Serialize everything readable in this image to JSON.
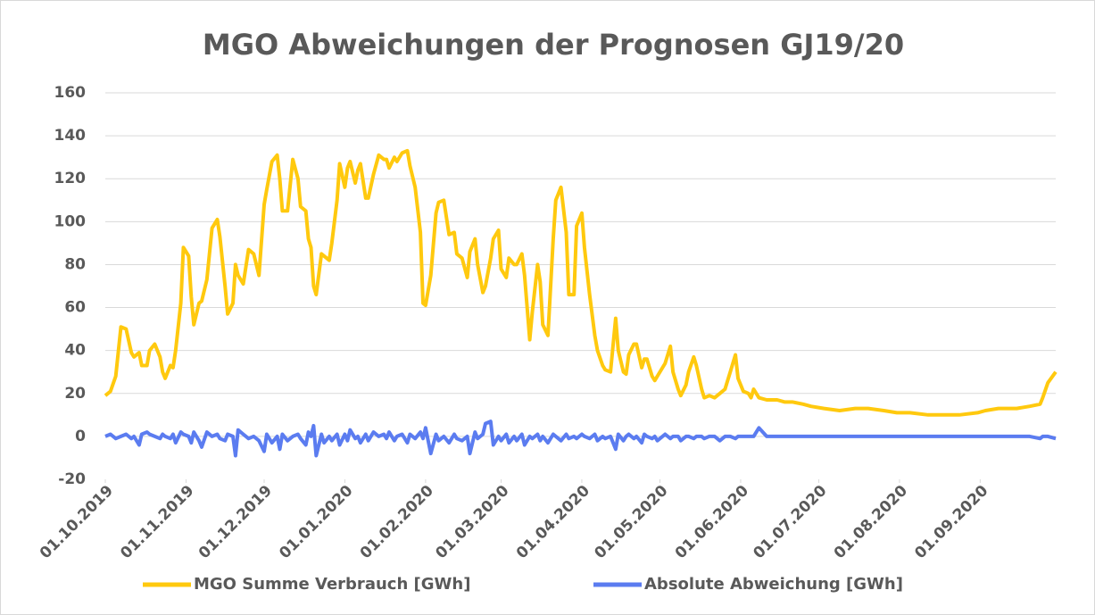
{
  "chart_data": {
    "type": "line",
    "title": "MGO Abweichungen der Prognosen GJ19/20",
    "x": [
      "01.10.2019",
      "03.10.2019",
      "05.10.2019",
      "07.10.2019",
      "09.10.2019",
      "11.10.2019",
      "12.10.2019",
      "14.10.2019",
      "15.10.2019",
      "17.10.2019",
      "18.10.2019",
      "20.10.2019",
      "22.10.2019",
      "23.10.2019",
      "24.10.2019",
      "26.10.2019",
      "27.10.2019",
      "28.10.2019",
      "30.10.2019",
      "31.10.2019",
      "02.11.2019",
      "03.11.2019",
      "04.11.2019",
      "06.11.2019",
      "07.11.2019",
      "09.11.2019",
      "11.11.2019",
      "13.11.2019",
      "14.11.2019",
      "16.11.2019",
      "17.11.2019",
      "19.11.2019",
      "20.11.2019",
      "21.11.2019",
      "23.11.2019",
      "25.11.2019",
      "27.11.2019",
      "29.11.2019",
      "01.12.2019",
      "02.12.2019",
      "04.12.2019",
      "06.12.2019",
      "07.12.2019",
      "08.12.2019",
      "10.12.2019",
      "12.12.2019",
      "14.12.2019",
      "15.12.2019",
      "17.12.2019",
      "18.12.2019",
      "19.12.2019",
      "20.12.2019",
      "21.12.2019",
      "23.12.2019",
      "24.12.2019",
      "26.12.2019",
      "27.12.2019",
      "29.12.2019",
      "30.12.2019",
      "01.01.2020",
      "02.01.2020",
      "03.01.2020",
      "05.01.2020",
      "06.01.2020",
      "07.01.2020",
      "09.01.2020",
      "10.01.2020",
      "12.01.2020",
      "14.01.2020",
      "16.01.2020",
      "17.01.2020",
      "18.01.2020",
      "20.01.2020",
      "21.01.2020",
      "23.01.2020",
      "25.01.2020",
      "26.01.2020",
      "28.01.2020",
      "30.01.2020",
      "31.01.2020",
      "01.02.2020",
      "03.02.2020",
      "05.02.2020",
      "06.02.2020",
      "08.02.2020",
      "10.02.2020",
      "12.02.2020",
      "13.02.2020",
      "15.02.2020",
      "17.02.2020",
      "18.02.2020",
      "20.02.2020",
      "21.02.2020",
      "23.02.2020",
      "24.02.2020",
      "26.02.2020",
      "27.02.2020",
      "29.02.2020",
      "01.03.2020",
      "03.03.2020",
      "04.03.2020",
      "06.03.2020",
      "07.03.2020",
      "09.03.2020",
      "10.03.2020",
      "12.03.2020",
      "13.03.2020",
      "15.03.2020",
      "16.03.2020",
      "17.03.2020",
      "19.03.2020",
      "21.03.2020",
      "22.03.2020",
      "24.03.2020",
      "26.03.2020",
      "27.03.2020",
      "29.03.2020",
      "30.03.2020",
      "01.04.2020",
      "02.04.2020",
      "04.04.2020",
      "06.04.2020",
      "07.04.2020",
      "09.04.2020",
      "10.04.2020",
      "12.04.2020",
      "14.04.2020",
      "15.04.2020",
      "17.04.2020",
      "18.04.2020",
      "19.04.2020",
      "21.04.2020",
      "22.04.2020",
      "24.04.2020",
      "25.04.2020",
      "26.04.2020",
      "28.04.2020",
      "29.04.2020",
      "30.04.2020",
      "02.05.2020",
      "03.05.2020",
      "05.05.2020",
      "06.05.2020",
      "08.05.2020",
      "09.05.2020",
      "11.05.2020",
      "12.05.2020",
      "14.05.2020",
      "15.05.2020",
      "17.05.2020",
      "18.05.2020",
      "20.05.2020",
      "22.05.2020",
      "24.05.2020",
      "26.05.2020",
      "28.05.2020",
      "30.05.2020",
      "31.05.2020",
      "02.06.2020",
      "04.06.2020",
      "05.06.2020",
      "06.06.2020",
      "08.06.2020",
      "11.06.2020",
      "15.06.2020",
      "18.06.2020",
      "21.06.2020",
      "25.06.2020",
      "28.06.2020",
      "03.07.2020",
      "09.07.2020",
      "15.07.2020",
      "20.07.2020",
      "26.07.2020",
      "31.07.2020",
      "05.08.2020",
      "12.08.2020",
      "19.08.2020",
      "24.08.2020",
      "31.08.2020",
      "03.09.2020",
      "08.09.2020",
      "15.09.2020",
      "20.09.2020",
      "24.09.2020",
      "25.09.2020",
      "27.09.2020",
      "30.09.2020"
    ],
    "series": [
      {
        "name": "MGO Summe Verbrauch [GWh]",
        "color": "#ffc90e",
        "values": [
          19,
          21,
          28,
          51,
          50,
          39,
          37,
          39,
          33,
          33,
          40,
          43,
          37,
          30,
          27,
          33,
          32,
          40,
          62,
          88,
          84,
          65,
          52,
          62,
          63,
          73,
          97,
          101,
          93,
          70,
          57,
          62,
          80,
          75,
          71,
          87,
          85,
          75,
          108,
          115,
          128,
          131,
          120,
          105,
          105,
          129,
          120,
          107,
          105,
          92,
          88,
          70,
          66,
          85,
          84,
          82,
          90,
          110,
          127,
          116,
          125,
          128,
          118,
          124,
          127,
          111,
          111,
          122,
          131,
          129,
          129,
          125,
          130,
          128,
          132,
          133,
          126,
          116,
          95,
          62,
          61,
          75,
          104,
          109,
          110,
          94,
          95,
          85,
          83,
          74,
          86,
          92,
          80,
          67,
          70,
          83,
          92,
          96,
          78,
          74,
          83,
          80,
          80,
          85,
          75,
          45,
          58,
          80,
          72,
          52,
          47,
          92,
          110,
          116,
          95,
          66,
          66,
          98,
          104,
          88,
          66,
          47,
          40,
          33,
          31,
          30,
          55,
          40,
          30,
          29,
          38,
          43,
          43,
          32,
          36,
          36,
          28,
          26,
          28,
          32,
          34,
          42,
          30,
          22,
          19,
          24,
          30,
          37,
          33,
          22,
          18,
          19,
          18,
          20,
          22,
          30,
          38,
          27,
          21,
          20,
          18,
          22,
          18,
          17,
          17,
          16,
          16,
          15,
          14,
          13,
          12,
          13,
          13,
          12,
          11,
          11,
          10,
          10,
          10,
          11,
          12,
          13,
          13,
          14,
          15,
          18,
          25,
          30
        ]
      },
      {
        "name": "Absolute Abweichung [GWh]",
        "color": "#5b7cf0",
        "values": [
          0,
          1,
          -1,
          0,
          1,
          -1,
          0,
          -4,
          1,
          2,
          1,
          0,
          -1,
          1,
          0,
          -1,
          1,
          -3,
          2,
          1,
          0,
          -3,
          2,
          -2,
          -5,
          2,
          0,
          1,
          -1,
          -2,
          1,
          0,
          -9,
          3,
          1,
          -1,
          0,
          -2,
          -7,
          1,
          -3,
          0,
          -6,
          1,
          -2,
          0,
          1,
          -1,
          -4,
          2,
          0,
          5,
          -9,
          1,
          -3,
          0,
          -2,
          1,
          -4,
          1,
          -2,
          3,
          -1,
          0,
          -3,
          1,
          -2,
          2,
          0,
          1,
          -1,
          2,
          -2,
          0,
          1,
          -3,
          1,
          -1,
          2,
          -1,
          4,
          -8,
          1,
          -2,
          0,
          -3,
          1,
          -1,
          -2,
          0,
          -8,
          2,
          -1,
          1,
          6,
          7,
          -4,
          0,
          -2,
          1,
          -3,
          0,
          -2,
          1,
          -4,
          0,
          -1,
          1,
          -2,
          0,
          -3,
          1,
          0,
          -2,
          1,
          -1,
          0,
          -1,
          1,
          0,
          -1,
          1,
          -2,
          0,
          -1,
          0,
          -6,
          1,
          -2,
          0,
          1,
          -1,
          0,
          -3,
          1,
          0,
          -1,
          0,
          -2,
          0,
          1,
          -1,
          0,
          0,
          -2,
          0,
          0,
          -1,
          0,
          0,
          -1,
          0,
          0,
          -2,
          0,
          0,
          -1,
          0,
          0,
          0,
          0,
          0,
          4,
          0,
          0,
          0,
          0,
          0,
          0,
          0,
          0,
          0,
          0,
          0,
          0,
          0,
          0,
          0,
          0,
          0,
          0,
          0,
          0,
          0,
          -1,
          0,
          0,
          -1
        ]
      }
    ],
    "xlim": [
      "01.10.2019",
      "30.09.2020"
    ],
    "xticks": [
      "01.10.2019",
      "01.11.2019",
      "01.12.2019",
      "01.01.2020",
      "01.02.2020",
      "01.03.2020",
      "01.04.2020",
      "01.05.2020",
      "01.06.2020",
      "01.07.2020",
      "01.08.2020",
      "01.09.2020"
    ],
    "ylim": [
      -20,
      160
    ],
    "yticks": [
      -20,
      0,
      20,
      40,
      60,
      80,
      100,
      120,
      140,
      160
    ],
    "grid": true,
    "legend": "bottom"
  }
}
